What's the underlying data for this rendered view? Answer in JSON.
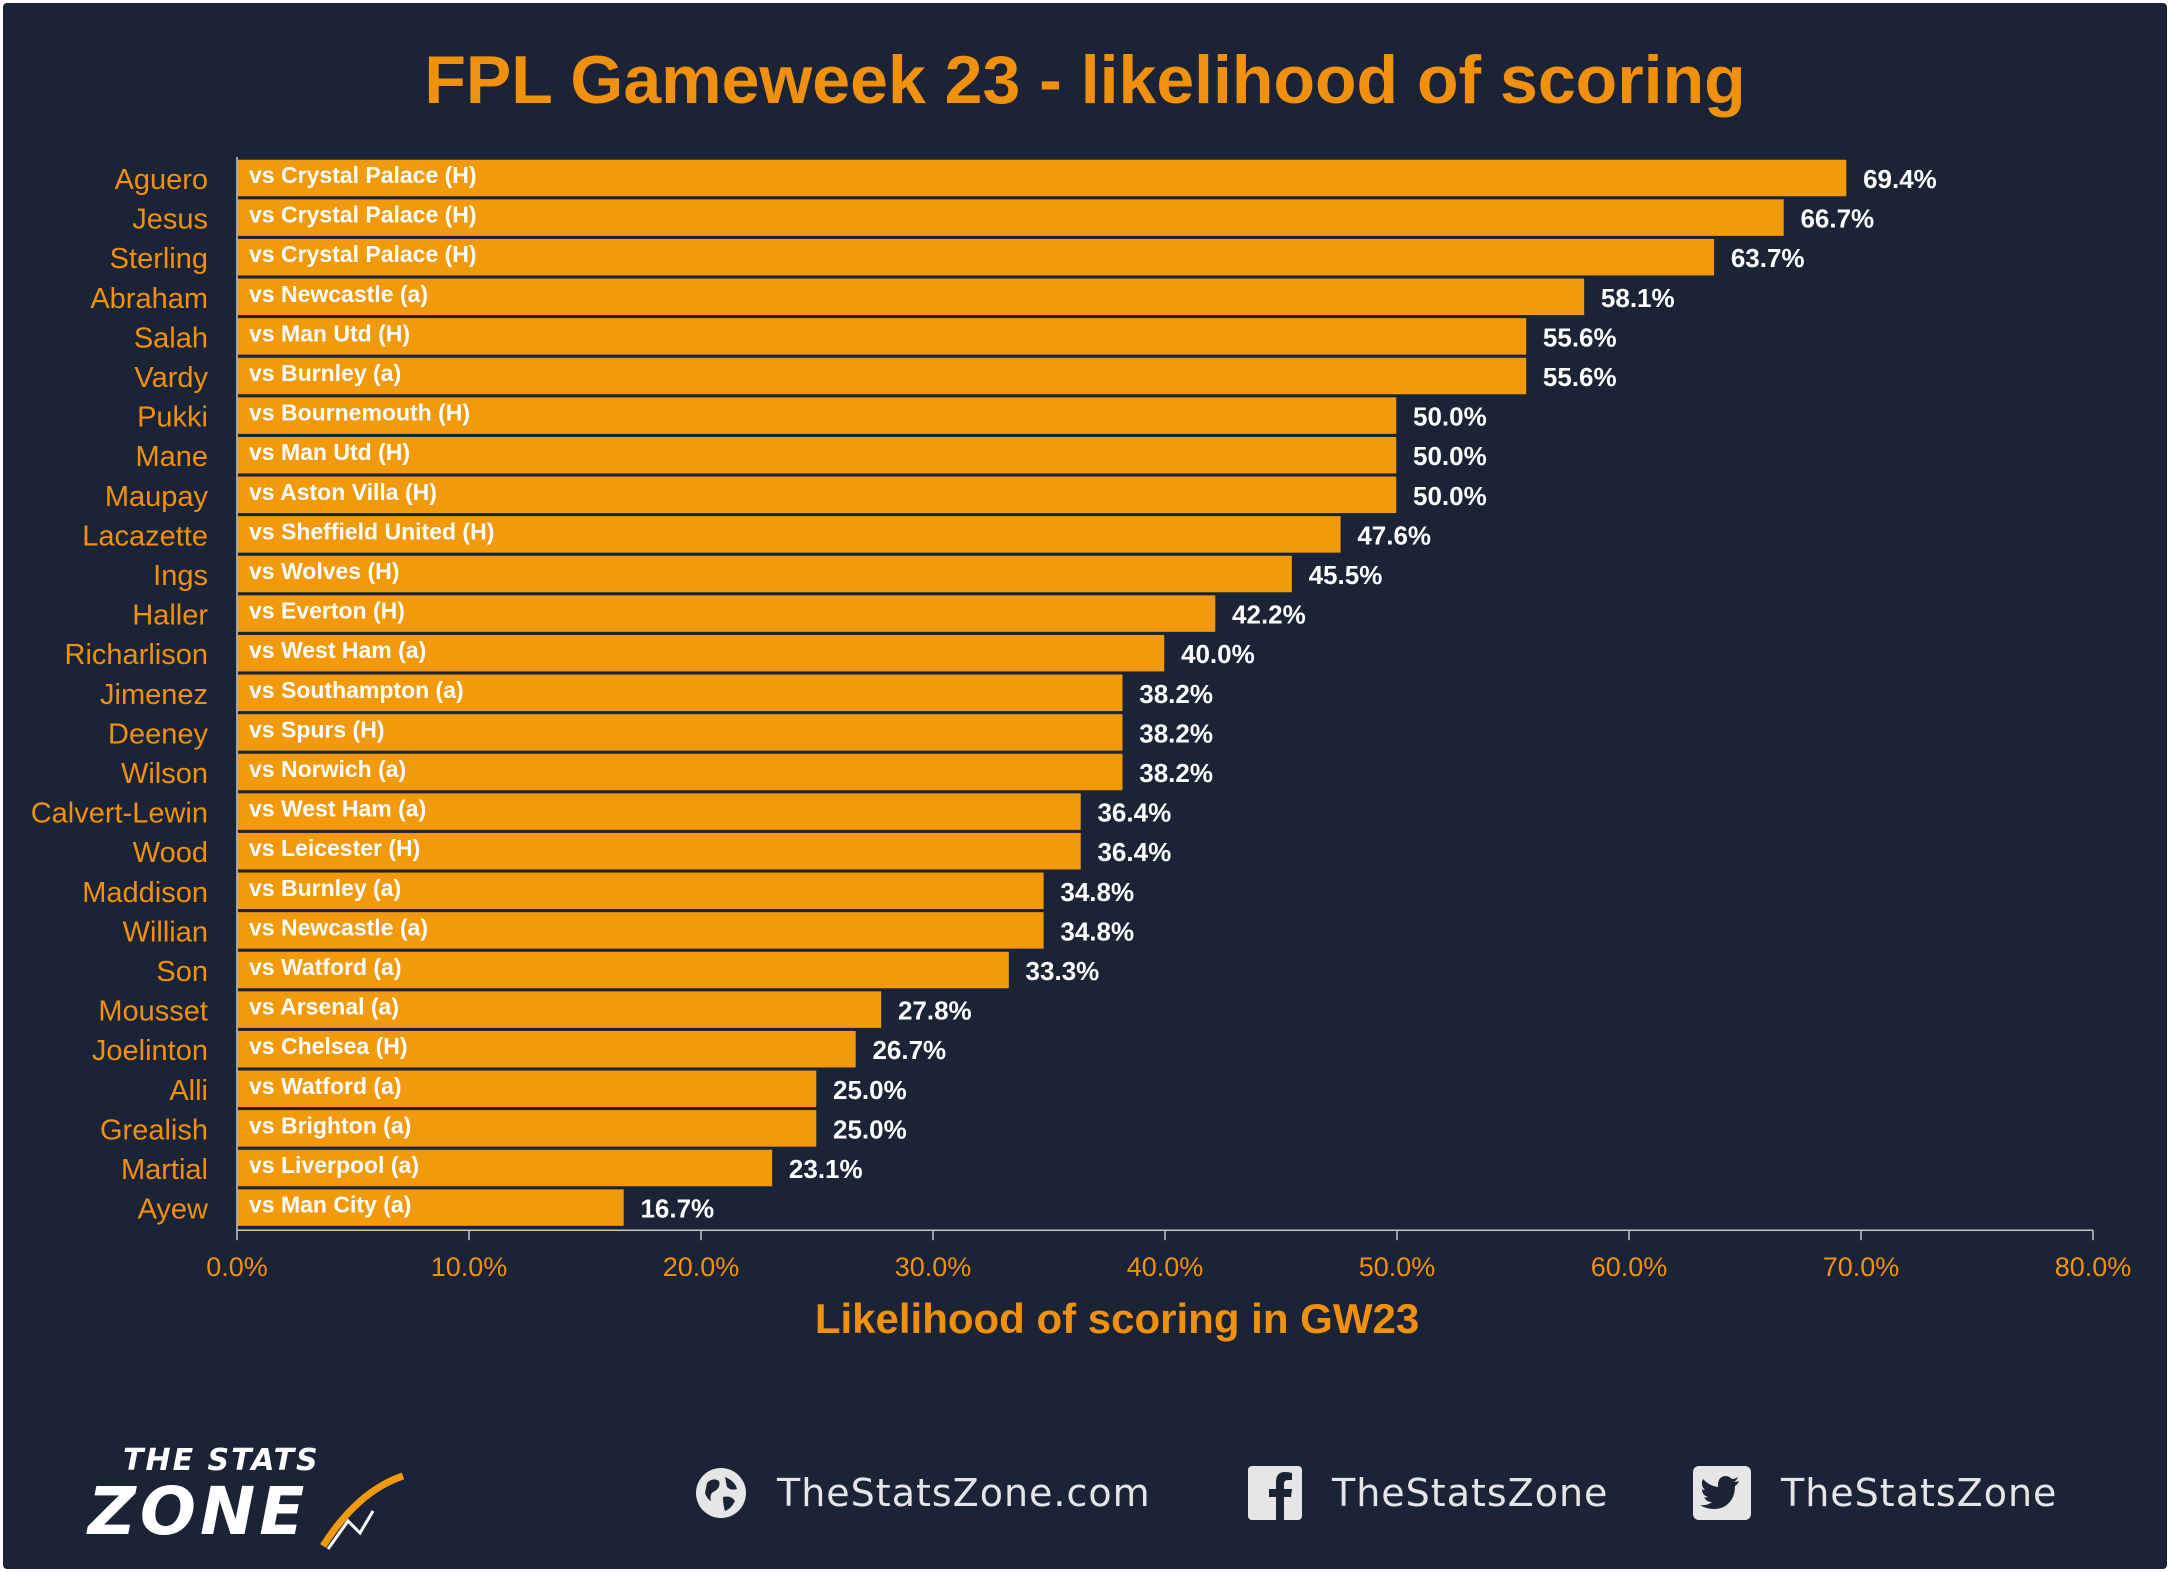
{
  "chart_data": {
    "type": "bar",
    "orientation": "horizontal",
    "title": "FPL Gameweek 23 - likelihood of scoring",
    "xlabel": "Likelihood of scoring in GW23",
    "ylabel": "",
    "xlim": [
      0,
      80
    ],
    "x_ticks": [
      "0.0%",
      "10.0%",
      "20.0%",
      "30.0%",
      "40.0%",
      "50.0%",
      "60.0%",
      "70.0%",
      "80.0%"
    ],
    "x_tick_values": [
      0,
      10,
      20,
      30,
      40,
      50,
      60,
      70,
      80
    ],
    "grid": false,
    "legend": "none",
    "categories": [
      "Aguero",
      "Jesus",
      "Sterling",
      "Abraham",
      "Salah",
      "Vardy",
      "Pukki",
      "Mane",
      "Maupay",
      "Lacazette",
      "Ings",
      "Haller",
      "Richarlison",
      "Jimenez",
      "Deeney",
      "Wilson",
      "Calvert-Lewin",
      "Wood",
      "Maddison",
      "Willian",
      "Son",
      "Mousset",
      "Joelinton",
      "Alli",
      "Grealish",
      "Martial",
      "Ayew"
    ],
    "values": [
      69.4,
      66.7,
      63.7,
      58.1,
      55.6,
      55.6,
      50.0,
      50.0,
      50.0,
      47.6,
      45.5,
      42.2,
      40.0,
      38.2,
      38.2,
      38.2,
      36.4,
      36.4,
      34.8,
      34.8,
      33.3,
      27.8,
      26.7,
      25.0,
      25.0,
      23.1,
      16.7
    ],
    "value_labels": [
      "69.4%",
      "66.7%",
      "63.7%",
      "58.1%",
      "55.6%",
      "55.6%",
      "50.0%",
      "50.0%",
      "50.0%",
      "47.6%",
      "45.5%",
      "42.2%",
      "40.0%",
      "38.2%",
      "38.2%",
      "38.2%",
      "36.4%",
      "36.4%",
      "34.8%",
      "34.8%",
      "33.3%",
      "27.8%",
      "26.7%",
      "25.0%",
      "25.0%",
      "23.1%",
      "16.7%"
    ],
    "bar_labels": [
      "vs Crystal Palace (H)",
      "vs Crystal Palace (H)",
      "vs Crystal Palace (H)",
      "vs Newcastle (a)",
      "vs Man Utd (H)",
      "vs Burnley (a)",
      "vs Bournemouth (H)",
      "vs Man Utd (H)",
      "vs Aston Villa (H)",
      "vs Sheffield United (H)",
      "vs Wolves (H)",
      "vs Everton (H)",
      "vs West Ham (a)",
      "vs Southampton (a)",
      "vs Spurs (H)",
      "vs Norwich (a)",
      "vs West Ham (a)",
      "vs Leicester (H)",
      "vs Burnley (a)",
      "vs Newcastle (a)",
      "vs Watford (a)",
      "vs Arsenal (a)",
      "vs Chelsea (H)",
      "vs Watford (a)",
      "vs Brighton (a)",
      "vs Liverpool (a)",
      "vs Man City (a)"
    ],
    "colors": {
      "background": "#1b2436",
      "bar": "#f39a0c",
      "bar_edge": "#1b2436",
      "accent": "#f0900d",
      "value_label": "#ffffff"
    }
  },
  "footer": {
    "logo": {
      "line1": "THE STATS",
      "line2": "ZONE"
    },
    "website": "TheStatsZone.com",
    "facebook": "TheStatsZone",
    "twitter": "TheStatsZone",
    "icons": [
      "globe-icon",
      "facebook-icon",
      "twitter-icon"
    ]
  }
}
